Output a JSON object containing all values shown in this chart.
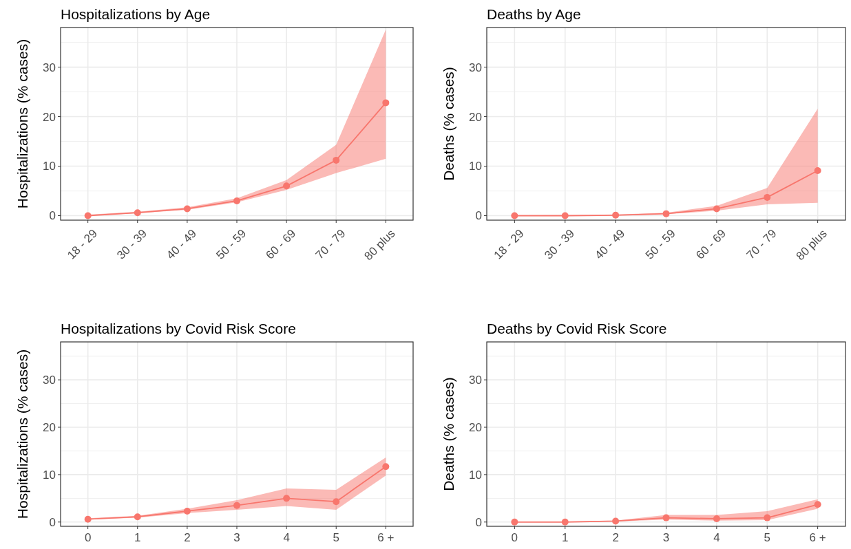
{
  "chart_data": [
    {
      "type": "line",
      "title": "Hospitalizations by Age",
      "ylabel": "Hospitalizations (% cases)",
      "categories": [
        "18 - 29",
        "30 - 39",
        "40 - 49",
        "50 - 59",
        "60 - 69",
        "70 - 79",
        "80 plus"
      ],
      "ylim": [
        -0.9,
        38
      ],
      "yticks": [
        0,
        {
          "value": 5,
          "label": null
        },
        10,
        {
          "value": 15,
          "label": null
        },
        20,
        {
          "value": 25,
          "label": null
        },
        30,
        {
          "value": 35,
          "label": null
        }
      ],
      "grid": true,
      "marker": "circle",
      "series": [
        {
          "color": "#f8766d",
          "values": [
            0.0,
            0.6,
            1.4,
            3.0,
            6.0,
            11.2,
            22.8
          ],
          "lower": [
            0,
            0.5,
            1.2,
            2.7,
            5.2,
            8.6,
            11.5
          ],
          "upper": [
            0.2,
            0.8,
            1.7,
            3.5,
            7.2,
            14.3,
            37.6
          ]
        }
      ]
    },
    {
      "type": "line",
      "title": "Deaths by Age",
      "ylabel": "Deaths (% cases)",
      "categories": [
        "18 - 29",
        "30 - 39",
        "40 - 49",
        "50 - 59",
        "60 - 69",
        "70 - 79",
        "80 plus"
      ],
      "ylim": [
        -0.9,
        38
      ],
      "yticks": [
        0,
        {
          "value": 5,
          "label": null
        },
        10,
        {
          "value": 15,
          "label": null
        },
        20,
        {
          "value": 25,
          "label": null
        },
        30,
        {
          "value": 35,
          "label": null
        }
      ],
      "grid": true,
      "marker": "circle",
      "series": [
        {
          "color": "#f8766d",
          "values": [
            0.0,
            0.0,
            0.1,
            0.4,
            1.4,
            3.7,
            9.1
          ],
          "lower": [
            0,
            0,
            0.05,
            0.3,
            1.0,
            2.3,
            2.6
          ],
          "upper": [
            0.05,
            0.1,
            0.25,
            0.6,
            2.0,
            5.6,
            21.6
          ]
        }
      ]
    },
    {
      "type": "line",
      "title": "Hospitalizations by Covid Risk Score",
      "ylabel": "Hospitalizations (% cases)",
      "categories": [
        "0",
        "1",
        "2",
        "3",
        "4",
        "5",
        "6 +"
      ],
      "ylim": [
        -0.9,
        38
      ],
      "yticks": [
        0,
        {
          "value": 5,
          "label": null
        },
        10,
        {
          "value": 15,
          "label": null
        },
        20,
        {
          "value": 25,
          "label": null
        },
        30,
        {
          "value": 35,
          "label": null
        }
      ],
      "grid": true,
      "marker": "circle",
      "series": [
        {
          "color": "#f8766d",
          "values": [
            0.6,
            1.1,
            2.3,
            3.5,
            5.0,
            4.3,
            11.7
          ],
          "lower": [
            0.5,
            0.9,
            1.9,
            2.6,
            3.4,
            2.6,
            9.8
          ],
          "upper": [
            0.8,
            1.3,
            2.8,
            4.6,
            7.1,
            6.8,
            13.6
          ]
        }
      ]
    },
    {
      "type": "line",
      "title": "Deaths by Covid Risk Score",
      "ylabel": "Deaths (% cases)",
      "categories": [
        "0",
        "1",
        "2",
        "3",
        "4",
        "5",
        "6 +"
      ],
      "ylim": [
        -0.9,
        38
      ],
      "yticks": [
        0,
        {
          "value": 5,
          "label": null
        },
        10,
        {
          "value": 15,
          "label": null
        },
        20,
        {
          "value": 25,
          "label": null
        },
        30,
        {
          "value": 35,
          "label": null
        }
      ],
      "grid": true,
      "marker": "circle",
      "series": [
        {
          "color": "#f8766d",
          "values": [
            0.0,
            0.0,
            0.2,
            0.9,
            0.7,
            0.9,
            3.7
          ],
          "lower": [
            0,
            0,
            0.1,
            0.5,
            0.3,
            0.4,
            2.8
          ],
          "upper": [
            0.05,
            0.1,
            0.3,
            1.5,
            1.5,
            2.3,
            4.8
          ]
        }
      ]
    }
  ]
}
